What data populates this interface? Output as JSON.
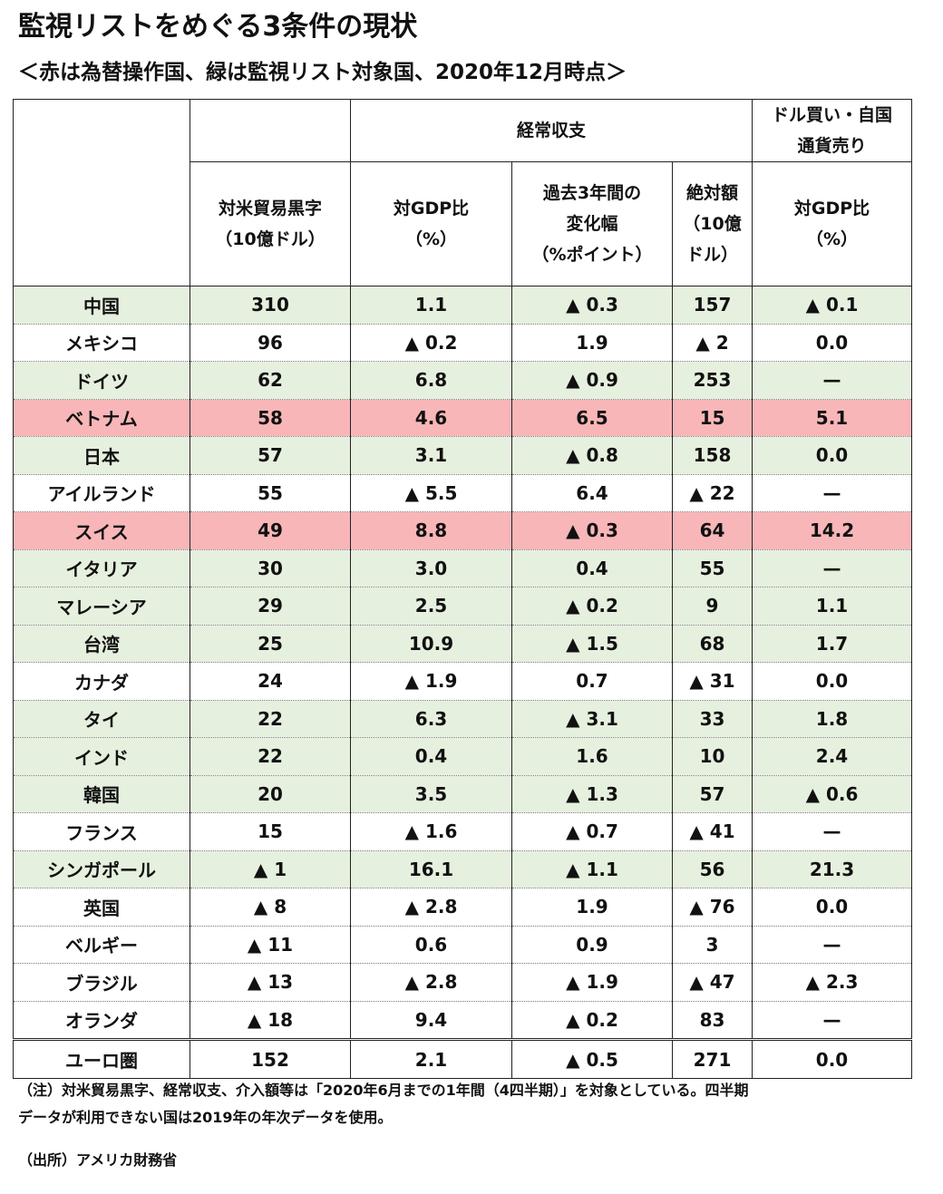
{
  "title": "監視リストをめぐる3条件の現状",
  "subtitle": "＜赤は為替操作国、緑は監視リスト対象国、2020年12月時点＞",
  "colors": {
    "green_row": "#e6f0de",
    "red_row": "#f8b6b8",
    "white_row": "#ffffff"
  },
  "header": {
    "current_account": "経常収支",
    "dollar_buy_line1": "ドル買い・自国",
    "dollar_buy_line2": "通貨売り",
    "trade_surplus_line1": "対米貿易黒字",
    "trade_surplus_line2": "（10億ドル）",
    "ca_gdp_line1": "対GDP比",
    "ca_gdp_line2": "（%）",
    "ca_change_line1": "過去3年間の",
    "ca_change_line2": "変化幅",
    "ca_change_line3": "（%ポイント）",
    "ca_abs_line1": "絶対額",
    "ca_abs_line2": "（10億",
    "ca_abs_line3": "ドル）",
    "fx_gdp_line1": "対GDP比",
    "fx_gdp_line2": "（%）"
  },
  "rows": [
    {
      "country": "中国",
      "status": "green",
      "trade": "310",
      "ca_gdp": "1.1",
      "ca_change": "▲ 0.3",
      "ca_abs": "157",
      "fx_gdp": "▲ 0.1"
    },
    {
      "country": "メキシコ",
      "status": "white",
      "trade": "96",
      "ca_gdp": "▲ 0.2",
      "ca_change": "1.9",
      "ca_abs": "▲ 2",
      "fx_gdp": "0.0"
    },
    {
      "country": "ドイツ",
      "status": "green",
      "trade": "62",
      "ca_gdp": "6.8",
      "ca_change": "▲ 0.9",
      "ca_abs": "253",
      "fx_gdp": "—"
    },
    {
      "country": "ベトナム",
      "status": "red",
      "trade": "58",
      "ca_gdp": "4.6",
      "ca_change": "6.5",
      "ca_abs": "15",
      "fx_gdp": "5.1"
    },
    {
      "country": "日本",
      "status": "green",
      "trade": "57",
      "ca_gdp": "3.1",
      "ca_change": "▲ 0.8",
      "ca_abs": "158",
      "fx_gdp": "0.0"
    },
    {
      "country": "アイルランド",
      "status": "white",
      "trade": "55",
      "ca_gdp": "▲ 5.5",
      "ca_change": "6.4",
      "ca_abs": "▲ 22",
      "fx_gdp": "—"
    },
    {
      "country": "スイス",
      "status": "red",
      "trade": "49",
      "ca_gdp": "8.8",
      "ca_change": "▲ 0.3",
      "ca_abs": "64",
      "fx_gdp": "14.2"
    },
    {
      "country": "イタリア",
      "status": "green",
      "trade": "30",
      "ca_gdp": "3.0",
      "ca_change": "0.4",
      "ca_abs": "55",
      "fx_gdp": "—"
    },
    {
      "country": "マレーシア",
      "status": "green",
      "trade": "29",
      "ca_gdp": "2.5",
      "ca_change": "▲ 0.2",
      "ca_abs": "9",
      "fx_gdp": "1.1"
    },
    {
      "country": "台湾",
      "status": "green",
      "trade": "25",
      "ca_gdp": "10.9",
      "ca_change": "▲ 1.5",
      "ca_abs": "68",
      "fx_gdp": "1.7"
    },
    {
      "country": "カナダ",
      "status": "white",
      "trade": "24",
      "ca_gdp": "▲ 1.9",
      "ca_change": "0.7",
      "ca_abs": "▲ 31",
      "fx_gdp": "0.0"
    },
    {
      "country": "タイ",
      "status": "green",
      "trade": "22",
      "ca_gdp": "6.3",
      "ca_change": "▲ 3.1",
      "ca_abs": "33",
      "fx_gdp": "1.8"
    },
    {
      "country": "インド",
      "status": "green",
      "trade": "22",
      "ca_gdp": "0.4",
      "ca_change": "1.6",
      "ca_abs": "10",
      "fx_gdp": "2.4"
    },
    {
      "country": "韓国",
      "status": "green",
      "trade": "20",
      "ca_gdp": "3.5",
      "ca_change": "▲ 1.3",
      "ca_abs": "57",
      "fx_gdp": "▲ 0.6"
    },
    {
      "country": "フランス",
      "status": "white",
      "trade": "15",
      "ca_gdp": "▲ 1.6",
      "ca_change": "▲ 0.7",
      "ca_abs": "▲ 41",
      "fx_gdp": "—"
    },
    {
      "country": "シンガポール",
      "status": "green",
      "trade": "▲ 1",
      "ca_gdp": "16.1",
      "ca_change": "▲ 1.1",
      "ca_abs": "56",
      "fx_gdp": "21.3"
    },
    {
      "country": "英国",
      "status": "white",
      "trade": "▲ 8",
      "ca_gdp": "▲ 2.8",
      "ca_change": "1.9",
      "ca_abs": "▲ 76",
      "fx_gdp": "0.0"
    },
    {
      "country": "ベルギー",
      "status": "white",
      "trade": "▲ 11",
      "ca_gdp": "0.6",
      "ca_change": "0.9",
      "ca_abs": "3",
      "fx_gdp": "—"
    },
    {
      "country": "ブラジル",
      "status": "white",
      "trade": "▲ 13",
      "ca_gdp": "▲ 2.8",
      "ca_change": "▲ 1.9",
      "ca_abs": "▲ 47",
      "fx_gdp": "▲ 2.3"
    },
    {
      "country": "オランダ",
      "status": "white",
      "trade": "▲ 18",
      "ca_gdp": "9.4",
      "ca_change": "▲ 0.2",
      "ca_abs": "83",
      "fx_gdp": "—"
    }
  ],
  "euro": {
    "country": "ユーロ圏",
    "trade": "152",
    "ca_gdp": "2.1",
    "ca_change": "▲ 0.5",
    "ca_abs": "271",
    "fx_gdp": "0.0"
  },
  "note_line1": "（注）対米貿易黒字、経常収支、介入額等は「2020年6月までの1年間（4四半期）」を対象としている。四半期",
  "note_line2": "データが利用できない国は2019年の年次データを使用。",
  "source": "（出所）アメリカ財務省"
}
